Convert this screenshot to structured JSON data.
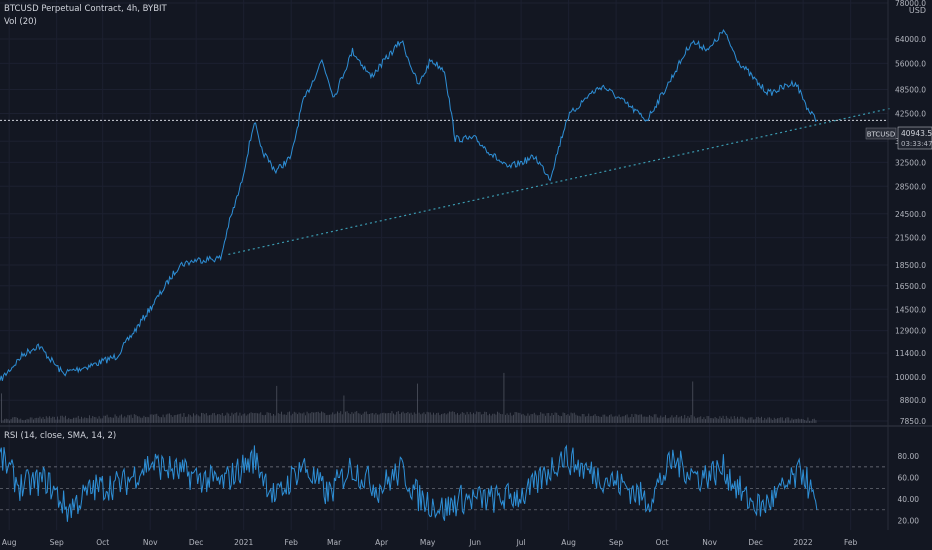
{
  "header": {
    "title": "BTCUSD Perpetual Contract, 4h, BYBIT",
    "volume_label": "Vol (20)",
    "currency": "USD"
  },
  "colors": {
    "background": "#131722",
    "price_line": "#2e8fd6",
    "trendline": "#3a9ab0",
    "rsi_line": "#2e8fd6",
    "axis_text": "#b2b5be",
    "volume": "#6a6e7a"
  },
  "price_badge": {
    "symbol": "BTCUSD",
    "value": "40943.5",
    "countdown": "03:33:47"
  },
  "chart_data": [
    {
      "type": "line",
      "title": "BTCUSD Perpetual Contract, 4h, BYBIT",
      "scale": "log",
      "y_unit": "USD",
      "y_ticks": [
        "78000.0",
        "64000.0",
        "56000.0",
        "48500.0",
        "42500.0",
        "36500.0",
        "32500.0",
        "28500.0",
        "24500.0",
        "21500.0",
        "18500.0",
        "16500.0",
        "14500.0",
        "12900.0",
        "11400.0",
        "10000.0",
        "8800.0",
        "7850.0"
      ],
      "x_ticks": [
        "Aug",
        "Sep",
        "Oct",
        "Nov",
        "Dec",
        "2021",
        "Feb",
        "Mar",
        "Apr",
        "May",
        "Jun",
        "Jul",
        "Aug",
        "Sep",
        "Oct",
        "Nov",
        "Dec",
        "2022",
        "Feb"
      ],
      "ylim": [
        7850,
        78000
      ],
      "series": [
        {
          "x": [
            "2020-07-26",
            "2020-08-10",
            "2020-08-20",
            "2020-09-05",
            "2020-09-25",
            "2020-10-10",
            "2020-10-22",
            "2020-11-05",
            "2020-11-20",
            "2020-12-01",
            "2020-12-17",
            "2020-12-22",
            "2020-12-30",
            "2021-01-08",
            "2021-01-12",
            "2021-01-22",
            "2021-02-01",
            "2021-02-08",
            "2021-02-21",
            "2021-03-01",
            "2021-03-13",
            "2021-03-25",
            "2021-04-14",
            "2021-04-25",
            "2021-05-03",
            "2021-05-12",
            "2021-05-19",
            "2021-06-01",
            "2021-06-22",
            "2021-07-10",
            "2021-07-20",
            "2021-07-31",
            "2021-08-14",
            "2021-08-23",
            "2021-09-07",
            "2021-09-21",
            "2021-10-05",
            "2021-10-20",
            "2021-11-01",
            "2021-11-10",
            "2021-11-20",
            "2021-12-04",
            "2021-12-10",
            "2021-12-27",
            "2022-01-05",
            "2022-01-10"
          ],
          "y": [
            9800,
            11300,
            11900,
            10200,
            10700,
            11200,
            12900,
            15300,
            18500,
            19000,
            19200,
            23000,
            28500,
            40900,
            35000,
            31000,
            33500,
            44500,
            57000,
            46500,
            60000,
            52000,
            63500,
            49500,
            57000,
            54000,
            37000,
            37000,
            31500,
            33500,
            29800,
            41500,
            47000,
            49500,
            45000,
            41000,
            50000,
            63000,
            60500,
            67000,
            56500,
            49500,
            47500,
            50500,
            43000,
            40943.5
          ]
        }
      ],
      "annotations": [
        {
          "type": "trendline",
          "from": {
            "x": "2020-12-22",
            "y": 19600
          },
          "to": {
            "x": "2022-02-28",
            "y": 43800
          }
        },
        {
          "type": "horizontal_line",
          "y": 40943.5
        }
      ]
    },
    {
      "type": "line",
      "title": "RSI (14, close, SMA, 14, 2)",
      "y_ticks": [
        "80.00",
        "60.00",
        "40.00",
        "20.00"
      ],
      "ylim": [
        14,
        95
      ],
      "reference_lines": [
        70,
        50,
        30
      ],
      "series": [
        {
          "x": [
            "2020-07-26",
            "2020-08-08",
            "2020-08-25",
            "2020-09-08",
            "2020-09-25",
            "2020-10-15",
            "2020-11-01",
            "2020-11-18",
            "2020-12-02",
            "2020-12-18",
            "2021-01-08",
            "2021-01-22",
            "2021-02-08",
            "2021-02-25",
            "2021-03-12",
            "2021-03-30",
            "2021-04-14",
            "2021-04-25",
            "2021-05-12",
            "2021-05-22",
            "2021-06-15",
            "2021-07-05",
            "2021-07-28",
            "2021-08-15",
            "2021-09-07",
            "2021-09-22",
            "2021-10-08",
            "2021-10-25",
            "2021-11-10",
            "2021-11-25",
            "2021-12-05",
            "2021-12-20",
            "2022-01-01",
            "2022-01-10"
          ],
          "y": [
            80,
            52,
            58,
            30,
            50,
            55,
            74,
            66,
            60,
            55,
            78,
            40,
            72,
            44,
            70,
            50,
            67,
            42,
            30,
            40,
            40,
            45,
            80,
            65,
            52,
            38,
            76,
            60,
            68,
            40,
            32,
            50,
            67,
            30
          ]
        }
      ]
    }
  ]
}
